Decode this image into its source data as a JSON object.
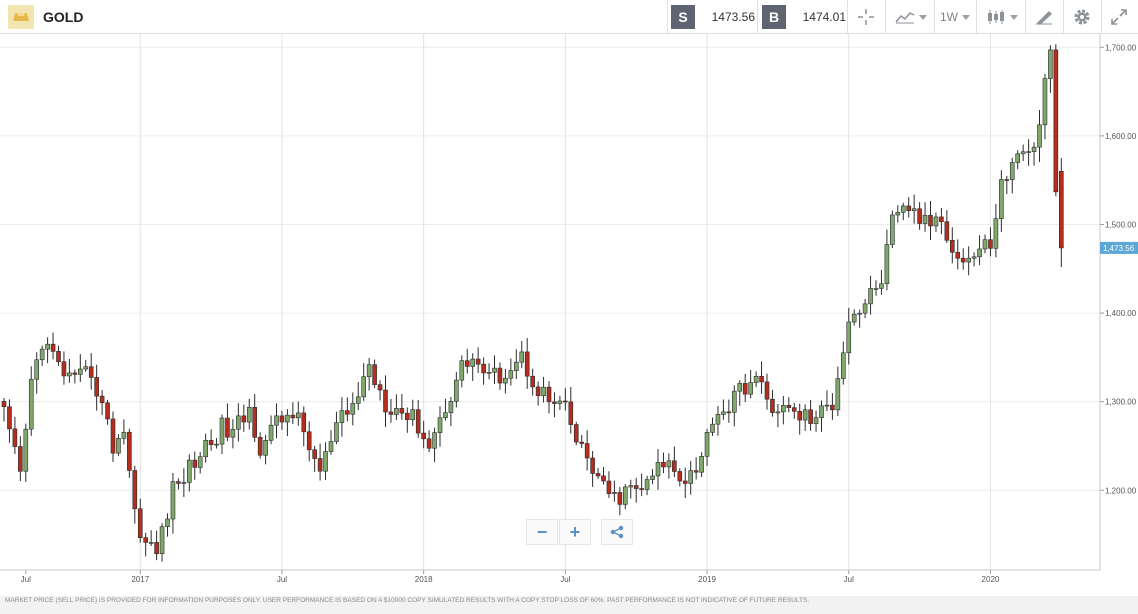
{
  "instrument": {
    "name": "GOLD",
    "logo_icon": "gold-bar-icon"
  },
  "quote": {
    "sell_label": "S",
    "sell_price": "1473.56",
    "buy_label": "B",
    "buy_price": "1474.01"
  },
  "toolbar": {
    "crosshair_icon": "crosshair-icon",
    "indicators_icon": "indicators-icon",
    "timeframe": "1W",
    "chart_type_icon": "candlestick-icon",
    "draw_icon": "drawing-tools-icon",
    "settings_icon": "gear-icon",
    "fullscreen_icon": "expand-icon"
  },
  "zoom": {
    "minus": "−",
    "plus": "+",
    "share_icon": "share-icon"
  },
  "current_price_label": "1,473.56",
  "colors": {
    "up": "#7fa86c",
    "down": "#b22e1e",
    "wick": "#2b2b2b",
    "badge": "#5ba7d6",
    "grid": "#ececec"
  },
  "footer": {
    "disclaimer": "MARKET PRICE (SELL PRICE) IS PROVIDED FOR INFORMATION PURPOSES ONLY. USER PERFORMANCE IS BASED ON A $10000 COPY SIMULATED RESULTS WITH A COPY STOP LOSS OF 60%. PAST PERFORMANCE IS NOT INDICATIVE OF FUTURE RESULTS."
  },
  "chart_data": {
    "type": "candlestick",
    "interval": "1W",
    "ylim": [
      1110,
      1715
    ],
    "y_ticks": [
      {
        "value": 1200,
        "label": "1,200.00"
      },
      {
        "value": 1300,
        "label": "1,300.00"
      },
      {
        "value": 1400,
        "label": "1,400.00"
      },
      {
        "value": 1500,
        "label": "1,500.00"
      },
      {
        "value": 1600,
        "label": "1,600.00"
      },
      {
        "value": 1700,
        "label": "1,700.00"
      }
    ],
    "x_ticks": [
      {
        "label": "Jul",
        "week": 4,
        "vline": false
      },
      {
        "label": "2017",
        "week": 25,
        "vline": true
      },
      {
        "label": "Jul",
        "week": 51,
        "vline": true
      },
      {
        "label": "2018",
        "week": 77,
        "vline": true
      },
      {
        "label": "Jul",
        "week": 103,
        "vline": true
      },
      {
        "label": "2019",
        "week": 129,
        "vline": true
      },
      {
        "label": "Jul",
        "week": 155,
        "vline": true
      },
      {
        "label": "2020",
        "week": 181,
        "vline": true
      }
    ],
    "anchors": [
      [
        0,
        1285
      ],
      [
        3,
        1215
      ],
      [
        5,
        1320
      ],
      [
        7,
        1370
      ],
      [
        10,
        1340
      ],
      [
        13,
        1320
      ],
      [
        16,
        1335
      ],
      [
        18,
        1295
      ],
      [
        20,
        1250
      ],
      [
        22,
        1270
      ],
      [
        24,
        1175
      ],
      [
        26,
        1140
      ],
      [
        28,
        1130
      ],
      [
        31,
        1200
      ],
      [
        34,
        1225
      ],
      [
        37,
        1250
      ],
      [
        40,
        1270
      ],
      [
        42,
        1265
      ],
      [
        45,
        1290
      ],
      [
        47,
        1250
      ],
      [
        50,
        1275
      ],
      [
        53,
        1290
      ],
      [
        56,
        1250
      ],
      [
        58,
        1220
      ],
      [
        61,
        1270
      ],
      [
        64,
        1295
      ],
      [
        67,
        1340
      ],
      [
        70,
        1300
      ],
      [
        73,
        1290
      ],
      [
        76,
        1275
      ],
      [
        78,
        1250
      ],
      [
        81,
        1295
      ],
      [
        84,
        1340
      ],
      [
        86,
        1350
      ],
      [
        89,
        1325
      ],
      [
        92,
        1335
      ],
      [
        95,
        1350
      ],
      [
        97,
        1325
      ],
      [
        100,
        1300
      ],
      [
        103,
        1290
      ],
      [
        105,
        1255
      ],
      [
        108,
        1225
      ],
      [
        110,
        1200
      ],
      [
        112,
        1190
      ],
      [
        115,
        1200
      ],
      [
        118,
        1205
      ],
      [
        120,
        1225
      ],
      [
        122,
        1230
      ],
      [
        125,
        1215
      ],
      [
        128,
        1235
      ],
      [
        130,
        1285
      ],
      [
        133,
        1295
      ],
      [
        136,
        1320
      ],
      [
        138,
        1325
      ],
      [
        140,
        1300
      ],
      [
        143,
        1290
      ],
      [
        146,
        1285
      ],
      [
        149,
        1280
      ],
      [
        152,
        1300
      ],
      [
        155,
        1395
      ],
      [
        158,
        1410
      ],
      [
        161,
        1440
      ],
      [
        163,
        1500
      ],
      [
        166,
        1520
      ],
      [
        169,
        1500
      ],
      [
        172,
        1510
      ],
      [
        175,
        1460
      ],
      [
        178,
        1465
      ],
      [
        181,
        1480
      ],
      [
        183,
        1545
      ],
      [
        185,
        1565
      ],
      [
        187,
        1590
      ],
      [
        189,
        1580
      ],
      [
        191,
        1660
      ],
      [
        192,
        1690
      ],
      [
        193,
        1530
      ],
      [
        194,
        1474
      ]
    ],
    "last": {
      "open": 1560,
      "high": 1575,
      "low": 1452,
      "close": 1473.56
    }
  }
}
